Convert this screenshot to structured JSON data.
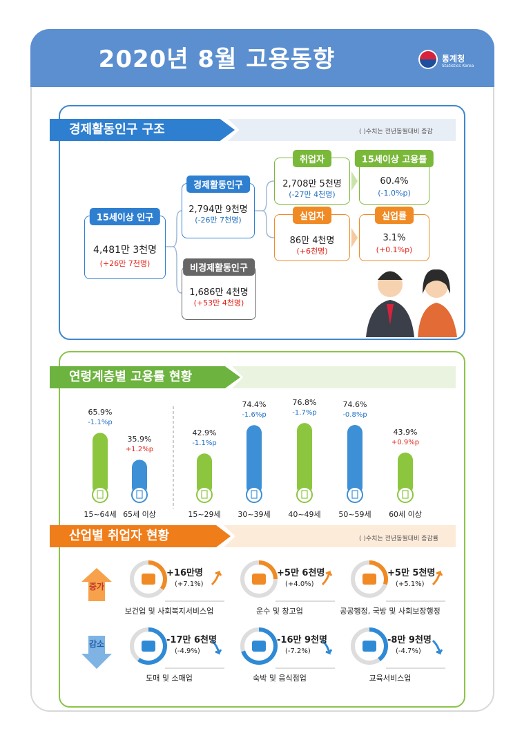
{
  "header": {
    "title": "2020년 8월 고용동향",
    "logo": "통계청",
    "logo_sub": "Statistics Korea"
  },
  "structure": {
    "title": "경제활동인구 구조",
    "note": "( )수치는 전년동월대비 증감",
    "nodes": [
      {
        "label": "15세이상 인구",
        "value": "4,481만 3천명",
        "change": "(+26만 7천명)"
      },
      {
        "label": "경제활동인구",
        "value": "2,794만 9천명",
        "change": "(-26만 7천명)"
      },
      {
        "label": "비경제활동인구",
        "value": "1,686만 4천명",
        "change": "(+53만 4천명)"
      },
      {
        "label": "취업자",
        "value": "2,708만 5천명",
        "change": "(-27만 4천명)"
      },
      {
        "label": "15세이상 고용률",
        "value": "60.4%",
        "change": "(-1.0%p)"
      },
      {
        "label": "실업자",
        "value": "86만 4천명",
        "change": "(+6천명)"
      },
      {
        "label": "실업률",
        "value": "3.1%",
        "change": "(+0.1%p)"
      }
    ]
  },
  "chart_data": {
    "type": "bar",
    "title": "연령계층별 고용률 현황",
    "categories": [
      "15~64세",
      "65세 이상",
      "15~29세",
      "30~39세",
      "40~49세",
      "50~59세",
      "60세 이상"
    ],
    "values": [
      65.9,
      35.9,
      42.9,
      74.4,
      76.8,
      74.6,
      43.9
    ],
    "value_labels": [
      "65.9%",
      "35.9%",
      "42.9%",
      "74.4%",
      "76.8%",
      "74.6%",
      "43.9%"
    ],
    "change_labels": [
      "-1.1%p",
      "+1.2%p",
      "-1.1%p",
      "-1.6%p",
      "-1.7%p",
      "-0.8%p",
      "+0.9%p"
    ],
    "colors": [
      "#8cc63f",
      "#3d8fd6",
      "#8cc63f",
      "#3d8fd6",
      "#8cc63f",
      "#3d8fd6",
      "#8cc63f"
    ]
  },
  "industry": {
    "title": "산업별 취업자 현황",
    "note": "( )수치는 전년동월대비 증감률",
    "groups": [
      {
        "label": "증가",
        "items": [
          {
            "change": "+16만명",
            "rate": "(+7.1%)",
            "name": "보건업 및 사회복지서비스업"
          },
          {
            "change": "+5만 6천명",
            "rate": "(+4.0%)",
            "name": "운수 및 창고업"
          },
          {
            "change": "+5만 5천명",
            "rate": "(+5.1%)",
            "name": "공공행정, 국방 및 사회보장행정"
          }
        ]
      },
      {
        "label": "감소",
        "items": [
          {
            "change": "-17만 6천명",
            "rate": "(-4.9%)",
            "name": "도매 및 소매업"
          },
          {
            "change": "-16만 9천명",
            "rate": "(-7.2%)",
            "name": "숙박 및 음식점업"
          },
          {
            "change": "-8만 9천명",
            "rate": "(-4.7%)",
            "name": "교육서비스업"
          }
        ]
      }
    ]
  }
}
